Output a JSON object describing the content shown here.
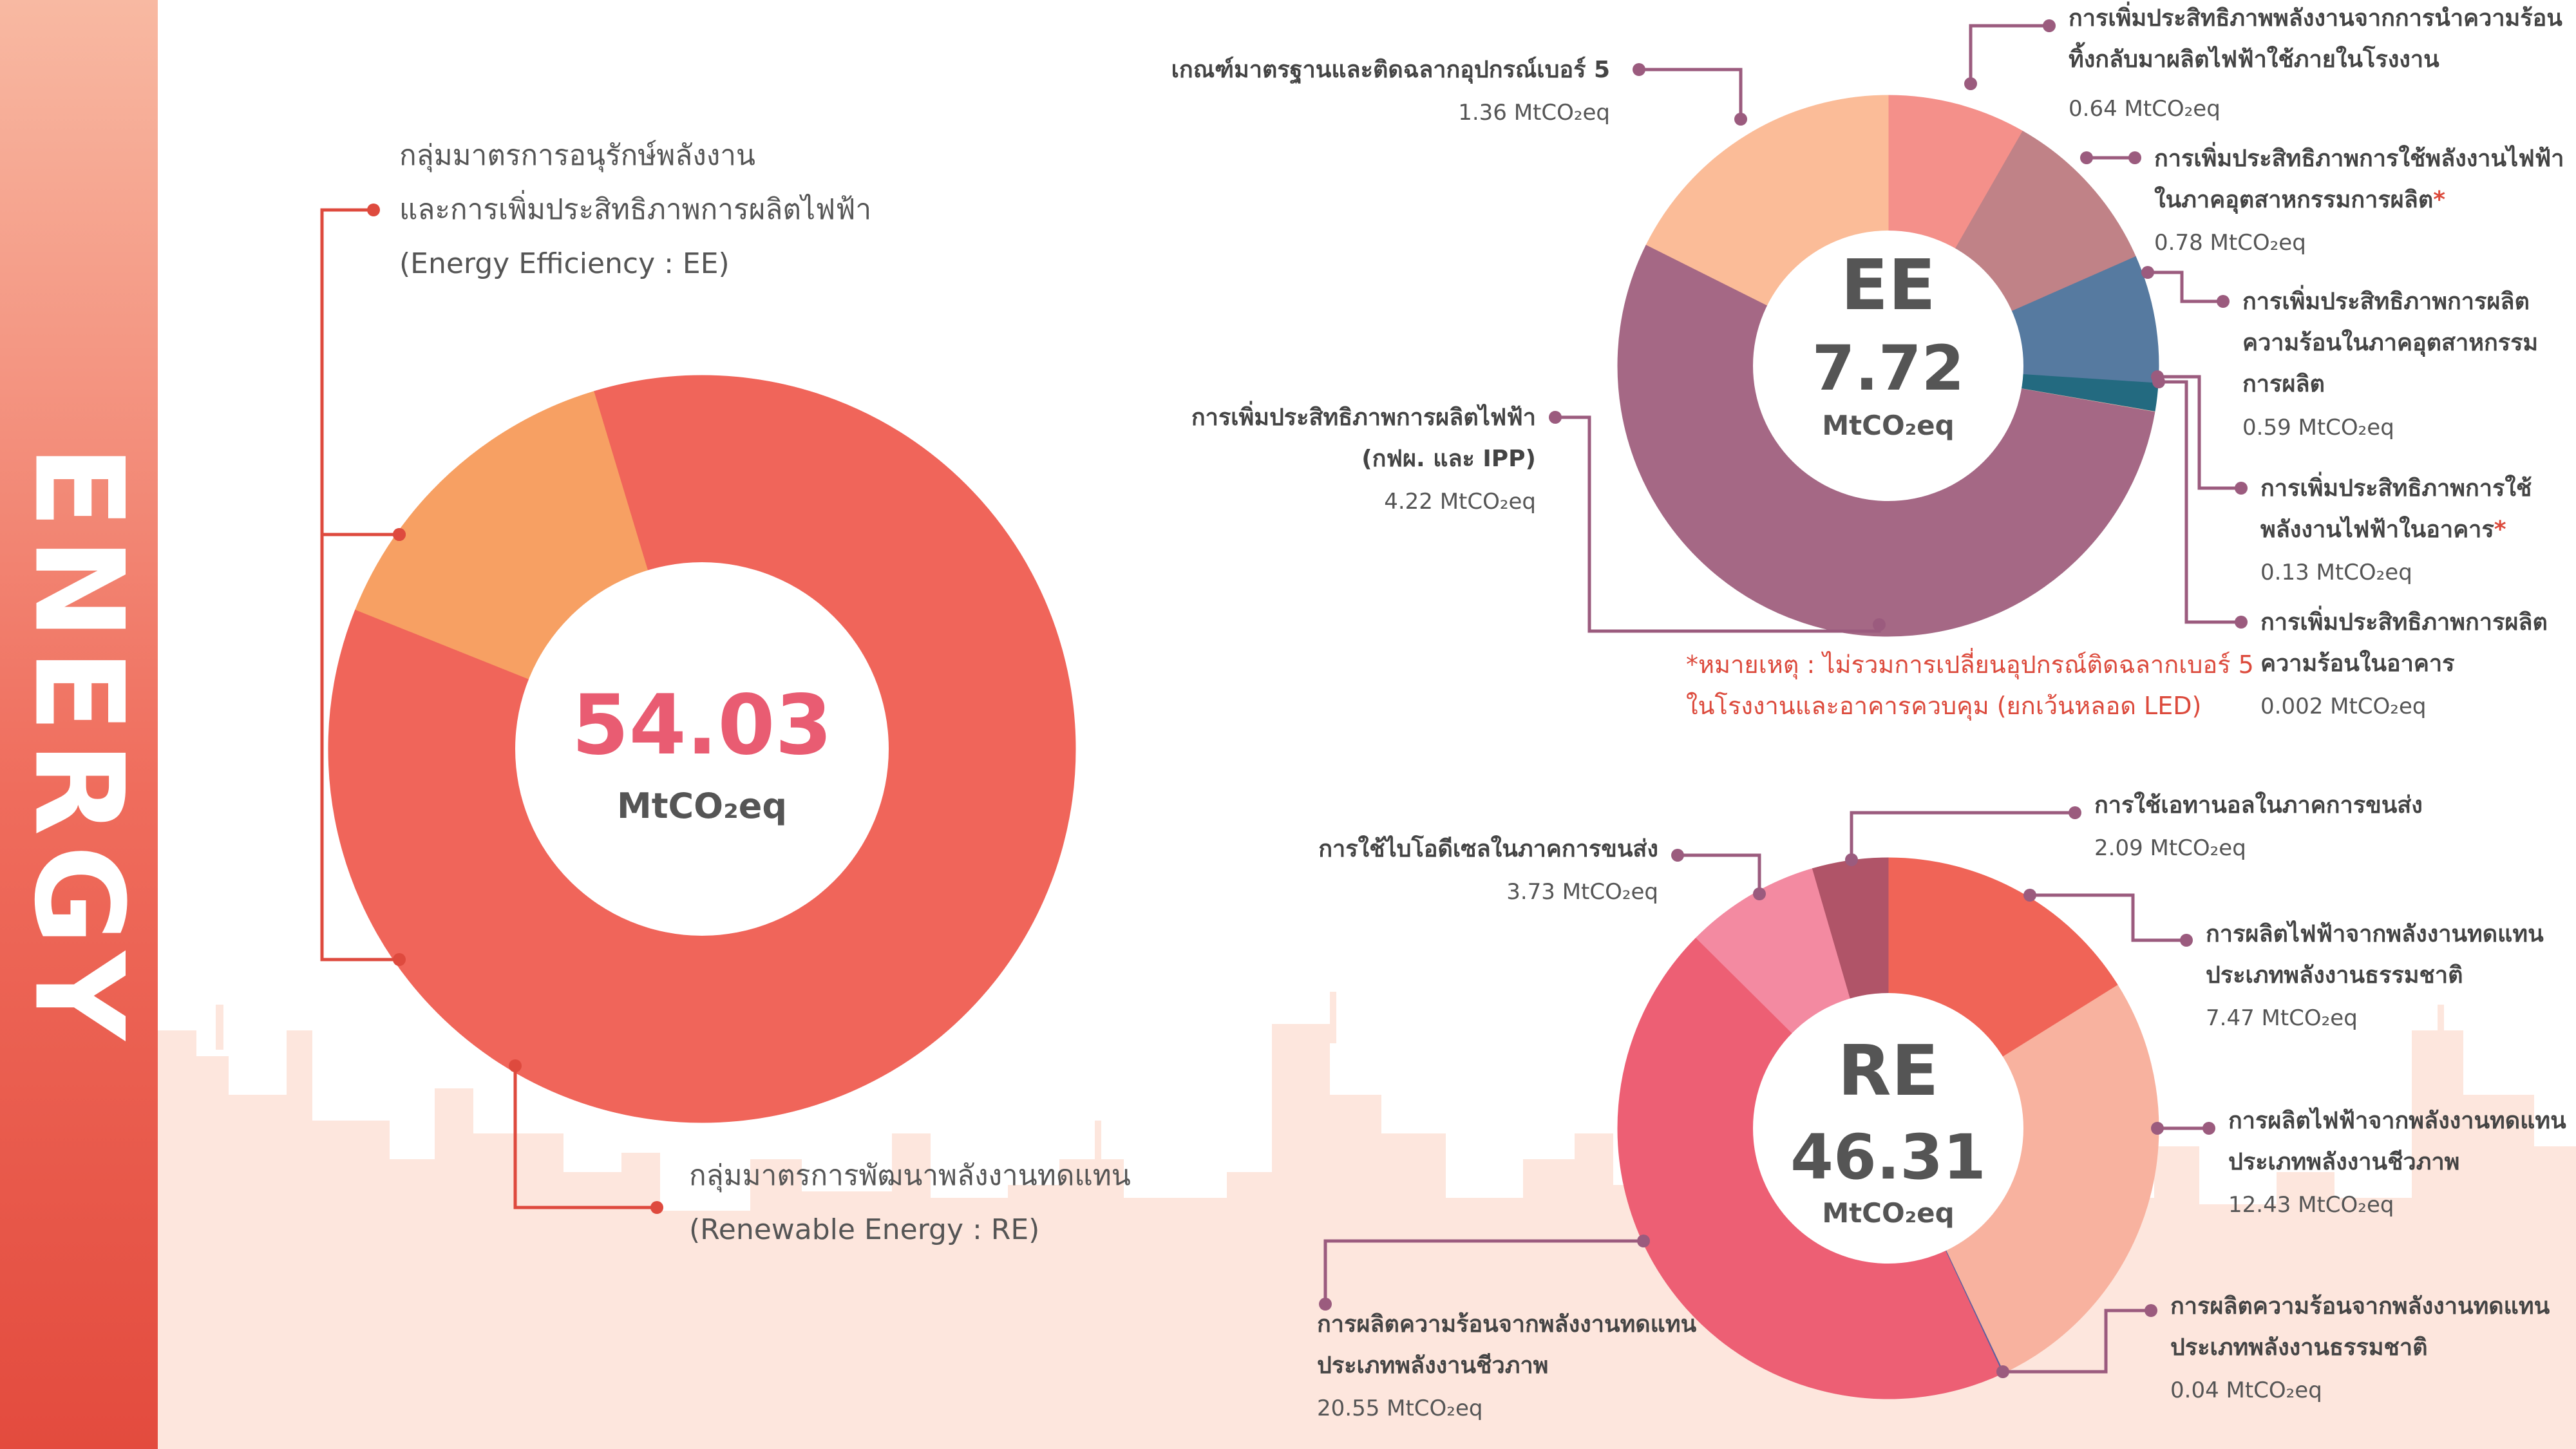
{
  "sidebar": {
    "title": "ENERGY"
  },
  "colors": {
    "main_re": "#f0655a",
    "main_ee": "#f7a063",
    "main_value": "#e95c72",
    "leader_main": "#de4a3e",
    "leader_sub": "#9b5b7e",
    "note": "#dc4a3c",
    "skyline": "#fde6dd"
  },
  "chart_data": [
    {
      "type": "pie",
      "center_value": "54.03",
      "center_unit": "MtCO₂eq",
      "slices": [
        {
          "key": "ee",
          "value": 7.72,
          "color": "#f7a063",
          "label_lines": [
            "กลุ่มมาตรการอนุรักษ์พลังงาน",
            "และการเพิ่มประสิทธิภาพการผลิตไฟฟ้า",
            "(Energy Efficiency : EE)"
          ]
        },
        {
          "key": "re",
          "value": 46.31,
          "color": "#f0655a",
          "label_lines": [
            "กลุ่มมาตรการพัฒนาพลังงานทดแทน",
            "(Renewable Energy : RE)"
          ]
        }
      ]
    },
    {
      "type": "pie",
      "center_title": "EE",
      "center_value": "7.72",
      "center_unit": "MtCO₂eq",
      "slices": [
        {
          "value": 0.64,
          "color": "#f4908a",
          "label_lines": [
            "การเพิ่มประสิทธิภาพพลังงานจากการนำความร้อน",
            "ทิ้งกลับมาผลิตไฟฟ้าใช้ภายในโรงงาน"
          ],
          "value_label": "0.64 MtCO₂eq"
        },
        {
          "value": 0.78,
          "color": "#c08287",
          "label_lines": [
            "การเพิ่มประสิทธิภาพการใช้พลังงานไฟฟ้า",
            "ในภาคอุตสาหกรรมการผลิต"
          ],
          "star": "*",
          "value_label": "0.78 MtCO₂eq"
        },
        {
          "value": 0.59,
          "color": "#567aa0",
          "label_lines": [
            "การเพิ่มประสิทธิภาพการผลิต",
            "ความร้อนในภาคอุตสาหกรรม",
            "การผลิต"
          ],
          "value_label": "0.59 MtCO₂eq"
        },
        {
          "value": 0.13,
          "color": "#236a80",
          "label_lines": [
            "การเพิ่มประสิทธิภาพการใช้",
            "พลังงานไฟฟ้าในอาคาร"
          ],
          "star": "*",
          "value_label": "0.13 MtCO₂eq"
        },
        {
          "value": 0.002,
          "color": "#f2c9b1",
          "label_lines": [
            "การเพิ่มประสิทธิภาพการผลิต",
            "ความร้อนในอาคาร"
          ],
          "value_label": "0.002 MtCO₂eq"
        },
        {
          "value": 4.22,
          "color": "#a56885",
          "label_lines": [
            "การเพิ่มประสิทธิภาพการผลิตไฟฟ้า",
            "(กฟผ. และ IPP)"
          ],
          "value_label": "4.22 MtCO₂eq"
        },
        {
          "value": 1.36,
          "color": "#fbbc98",
          "label_lines": [
            "เกณฑ์มาตรฐานและติดฉลากอุปกรณ์เบอร์ 5"
          ],
          "value_label": "1.36 MtCO₂eq"
        }
      ],
      "note_lines": [
        "*หมายเหตุ : ไม่รวมการเปลี่ยนอุปกรณ์ติดฉลากเบอร์ 5",
        "ในโรงงานและอาคารควบคุม (ยกเว้นหลอด LED)"
      ]
    },
    {
      "type": "pie",
      "center_title": "RE",
      "center_value": "46.31",
      "center_unit": "MtCO₂eq",
      "slices": [
        {
          "value": 7.47,
          "color": "#f06457",
          "label_lines": [
            "การผลิตไฟฟ้าจากพลังงานทดแทน",
            "ประเภทพลังงานธรรมชาติ"
          ],
          "value_label": "7.47 MtCO₂eq"
        },
        {
          "value": 12.43,
          "color": "#f8b29f",
          "label_lines": [
            "การผลิตไฟฟ้าจากพลังงานทดแทน",
            "ประเภทพลังงานชีวภาพ"
          ],
          "value_label": "12.43 MtCO₂eq"
        },
        {
          "value": 0.04,
          "color": "#5b5fa0",
          "label_lines": [
            "การผลิตความร้อนจากพลังงานทดแทน",
            "ประเภทพลังงานธรรมชาติ"
          ],
          "value_label": "0.04 MtCO₂eq"
        },
        {
          "value": 20.55,
          "color": "#ed5f74",
          "label_lines": [
            "การผลิตความร้อนจากพลังงานทดแทน",
            "ประเภทพลังงานชีวภาพ"
          ],
          "value_label": "20.55 MtCO₂eq"
        },
        {
          "value": 3.73,
          "color": "#f38aa1",
          "label_lines": [
            "การใช้ไบโอดีเซลในภาคการขนส่ง"
          ],
          "value_label": "3.73 MtCO₂eq"
        },
        {
          "value": 2.09,
          "color": "#b05468",
          "label_lines": [
            "การใช้เอทานอลในภาคการขนส่ง"
          ],
          "value_label": "2.09 MtCO₂eq"
        }
      ]
    }
  ]
}
